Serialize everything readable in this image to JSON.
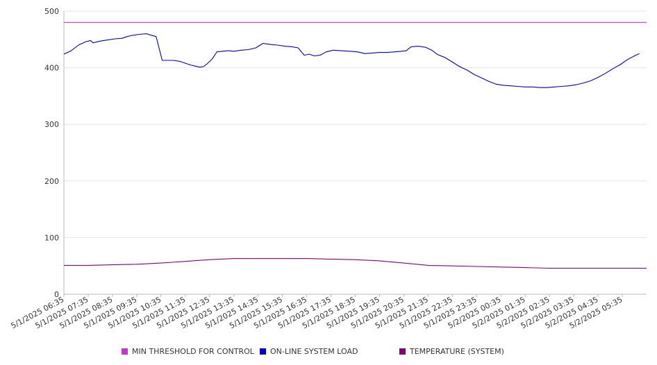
{
  "chart_data": {
    "type": "line",
    "title": "",
    "xlabel": "",
    "ylabel": "",
    "ylim": [
      0,
      500
    ],
    "yticks": [
      0,
      100,
      200,
      300,
      400,
      500
    ],
    "grid": "horizontal",
    "legend_position": "bottom",
    "x_tick_labels": [
      "5/1/2025 06:35",
      "5/1/2025 07:35",
      "5/1/2025 08:35",
      "5/1/2025 09:35",
      "5/1/2025 10:35",
      "5/1/2025 11:35",
      "5/1/2025 12:35",
      "5/1/2025 13:35",
      "5/1/2025 14:35",
      "5/1/2025 15:35",
      "5/1/2025 16:35",
      "5/1/2025 17:35",
      "5/1/2025 18:35",
      "5/1/2025 19:35",
      "5/1/2025 20:35",
      "5/1/2025 21:35",
      "5/1/2025 22:35",
      "5/1/2025 23:35",
      "5/2/2025 00:35",
      "5/2/2025 01:35",
      "5/2/2025 02:35",
      "5/2/2025 03:35",
      "5/2/2025 04:35",
      "5/2/2025 05:35"
    ],
    "series": [
      {
        "name": "MIN THRESHOLD FOR CONTROL",
        "color": "#cc33cc",
        "values": [
          [
            0,
            480
          ],
          [
            24,
            480
          ]
        ]
      },
      {
        "name": "ON-LINE SYSTEM LOAD",
        "color": "#0000cc",
        "values": [
          [
            0,
            424
          ],
          [
            0.3,
            430
          ],
          [
            0.6,
            440
          ],
          [
            0.9,
            446
          ],
          [
            1.1,
            448
          ],
          [
            1.2,
            444
          ],
          [
            1.5,
            447
          ],
          [
            1.8,
            449
          ],
          [
            2.1,
            451
          ],
          [
            2.4,
            452
          ],
          [
            2.6,
            455
          ],
          [
            2.8,
            457
          ],
          [
            3.1,
            459
          ],
          [
            3.4,
            460
          ],
          [
            3.55,
            458
          ],
          [
            3.8,
            455
          ],
          [
            4.05,
            413
          ],
          [
            4.25,
            413
          ],
          [
            4.5,
            413
          ],
          [
            4.8,
            411
          ],
          [
            5.0,
            408
          ],
          [
            5.2,
            405
          ],
          [
            5.4,
            403
          ],
          [
            5.6,
            401
          ],
          [
            5.75,
            402
          ],
          [
            5.9,
            407
          ],
          [
            6.1,
            415
          ],
          [
            6.3,
            428
          ],
          [
            6.5,
            429
          ],
          [
            6.8,
            430
          ],
          [
            7.0,
            429
          ],
          [
            7.3,
            431
          ],
          [
            7.6,
            432
          ],
          [
            7.9,
            435
          ],
          [
            8.2,
            443
          ],
          [
            8.5,
            441
          ],
          [
            8.8,
            440
          ],
          [
            9.1,
            438
          ],
          [
            9.4,
            437
          ],
          [
            9.65,
            435
          ],
          [
            9.9,
            422
          ],
          [
            10.1,
            424
          ],
          [
            10.3,
            421
          ],
          [
            10.55,
            422
          ],
          [
            10.8,
            428
          ],
          [
            11.1,
            431
          ],
          [
            11.4,
            430
          ],
          [
            11.8,
            429
          ],
          [
            12.1,
            428
          ],
          [
            12.4,
            425
          ],
          [
            12.7,
            426
          ],
          [
            13.0,
            427
          ],
          [
            13.3,
            427
          ],
          [
            13.6,
            428
          ],
          [
            13.9,
            429
          ],
          [
            14.1,
            430
          ],
          [
            14.3,
            437
          ],
          [
            14.6,
            438
          ],
          [
            14.9,
            436
          ],
          [
            15.15,
            431
          ],
          [
            15.4,
            423
          ],
          [
            15.7,
            418
          ],
          [
            16.0,
            410
          ],
          [
            16.3,
            402
          ],
          [
            16.6,
            396
          ],
          [
            16.9,
            388
          ],
          [
            17.2,
            382
          ],
          [
            17.5,
            376
          ],
          [
            17.8,
            371
          ],
          [
            18.1,
            369
          ],
          [
            18.4,
            368
          ],
          [
            18.7,
            367
          ],
          [
            19.0,
            366
          ],
          [
            19.3,
            366
          ],
          [
            19.6,
            365
          ],
          [
            19.9,
            365
          ],
          [
            20.2,
            366
          ],
          [
            20.5,
            367
          ],
          [
            20.8,
            368
          ],
          [
            21.1,
            370
          ],
          [
            21.4,
            373
          ],
          [
            21.7,
            377
          ],
          [
            22.0,
            383
          ],
          [
            22.3,
            390
          ],
          [
            22.6,
            398
          ],
          [
            22.9,
            405
          ],
          [
            23.2,
            414
          ],
          [
            23.5,
            421
          ],
          [
            23.7,
            425
          ]
        ]
      },
      {
        "name": "TEMPERATURE (SYSTEM)",
        "color": "#880077",
        "values": [
          [
            0,
            51
          ],
          [
            1,
            51
          ],
          [
            2,
            52
          ],
          [
            3,
            53
          ],
          [
            4,
            55
          ],
          [
            5,
            58
          ],
          [
            6,
            61
          ],
          [
            7,
            63
          ],
          [
            8,
            63
          ],
          [
            9,
            63
          ],
          [
            10,
            63
          ],
          [
            11,
            62
          ],
          [
            12,
            61
          ],
          [
            13,
            59
          ],
          [
            14,
            55
          ],
          [
            15,
            51
          ],
          [
            16,
            50
          ],
          [
            17,
            49
          ],
          [
            18,
            48
          ],
          [
            19,
            47
          ],
          [
            20,
            46
          ],
          [
            21,
            46
          ],
          [
            22,
            46
          ],
          [
            23,
            46
          ],
          [
            24,
            46
          ]
        ]
      }
    ]
  }
}
